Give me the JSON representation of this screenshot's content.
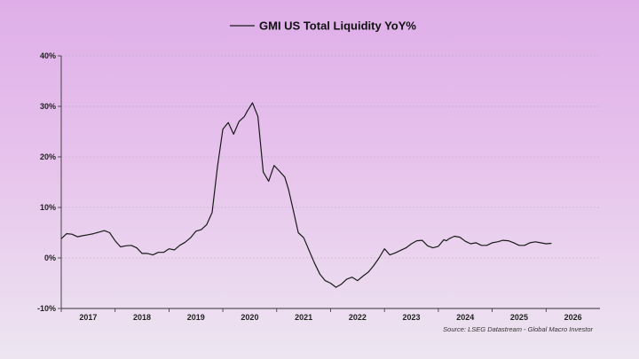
{
  "chart_data": {
    "type": "line",
    "title": "",
    "legend": [
      "GMI US Total Liquidity YoY%"
    ],
    "legend_placement": "top-center",
    "source": "Source: LSEG Datastream - Global Macro Investor",
    "ylim": [
      -10,
      40
    ],
    "yticks": [
      -10,
      0,
      10,
      20,
      30,
      40
    ],
    "ytick_labels": [
      "-10%",
      "0%",
      "10%",
      "20%",
      "30%",
      "40%"
    ],
    "xlim": [
      2016.5,
      2026.5
    ],
    "xtick_labels": [
      "2017",
      "2018",
      "2019",
      "2020",
      "2021",
      "2022",
      "2023",
      "2024",
      "2025",
      "2026"
    ],
    "xtick_positions": [
      2017,
      2018,
      2019,
      2020,
      2021,
      2022,
      2023,
      2024,
      2025,
      2026
    ],
    "grid": true,
    "series": [
      {
        "name": "GMI US Total Liquidity YoY%",
        "color": "#1a1a1a",
        "x": [
          2016.5,
          2016.6,
          2016.7,
          2016.8,
          2016.9,
          2017.0,
          2017.1,
          2017.3,
          2017.4,
          2017.5,
          2017.6,
          2017.7,
          2017.8,
          2017.9,
          2018.0,
          2018.1,
          2018.2,
          2018.3,
          2018.4,
          2018.5,
          2018.6,
          2018.7,
          2018.8,
          2018.9,
          2019.0,
          2019.1,
          2019.2,
          2019.3,
          2019.4,
          2019.5,
          2019.6,
          2019.7,
          2019.8,
          2019.9,
          2019.95,
          2020.05,
          2020.15,
          2020.25,
          2020.35,
          2020.45,
          2020.55,
          2020.65,
          2020.72,
          2020.8,
          2020.9,
          2021.0,
          2021.1,
          2021.2,
          2021.3,
          2021.4,
          2021.5,
          2021.6,
          2021.7,
          2021.8,
          2021.9,
          2022.0,
          2022.1,
          2022.2,
          2022.3,
          2022.4,
          2022.5,
          2022.6,
          2022.7,
          2022.8,
          2022.9,
          2023.0,
          2023.1,
          2023.2,
          2023.3,
          2023.4,
          2023.5,
          2023.6,
          2023.65,
          2023.7,
          2023.8,
          2023.9,
          2024.0,
          2024.1,
          2024.2,
          2024.3,
          2024.4,
          2024.5,
          2024.6,
          2024.7,
          2024.8,
          2024.9,
          2025.0,
          2025.1,
          2025.2,
          2025.3,
          2025.4,
          2025.5,
          2025.6
        ],
        "values": [
          3.8,
          4.8,
          4.7,
          4.2,
          4.4,
          4.6,
          4.8,
          5.4,
          5.0,
          3.4,
          2.2,
          2.4,
          2.5,
          2.0,
          0.9,
          0.9,
          0.6,
          1.1,
          1.1,
          1.8,
          1.6,
          2.5,
          3.1,
          4.0,
          5.3,
          5.6,
          6.6,
          9.0,
          18.0,
          25.5,
          26.8,
          24.5,
          27.0,
          28.0,
          29.0,
          30.7,
          28.0,
          17.0,
          15.2,
          18.3,
          17.2,
          16.0,
          13.5,
          9.8,
          5.0,
          4.0,
          1.5,
          -1.0,
          -3.2,
          -4.5,
          -5.0,
          -5.8,
          -5.2,
          -4.2,
          -3.8,
          -4.5,
          -3.6,
          -2.8,
          -1.5,
          0.0,
          1.8,
          0.6,
          1.0,
          1.5,
          2.0,
          2.8,
          3.4,
          3.5,
          2.4,
          2.0,
          2.3,
          3.6,
          3.4,
          3.8,
          4.3,
          4.1,
          3.3,
          2.8,
          3.0,
          2.5,
          2.5,
          3.0,
          3.2,
          3.5,
          3.4,
          3.0,
          2.5,
          2.5,
          3.0,
          3.2,
          3.0,
          2.8,
          2.9
        ]
      }
    ]
  }
}
